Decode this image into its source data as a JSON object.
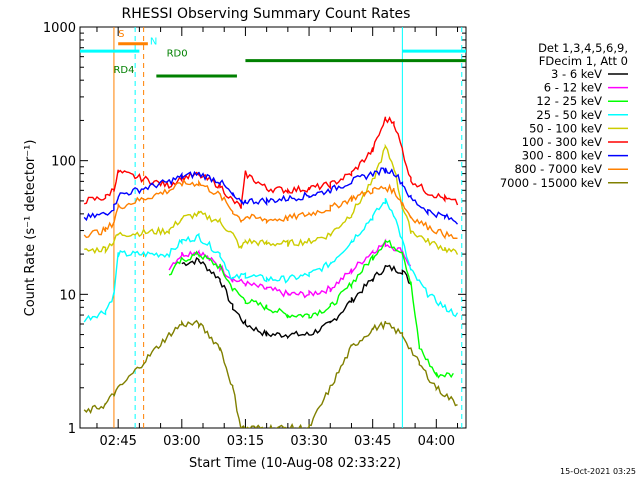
{
  "chart_data": {
    "type": "line",
    "title": "RHESSI Observing Summary Count Rates",
    "xlabel": "Start Time (10-Aug-08 02:33:22)",
    "ylabel": "Count Rate (s⁻¹ detector⁻¹)",
    "y_scale": "log",
    "ylim": [
      1,
      1000
    ],
    "xlim": [
      "02:36",
      "04:07"
    ],
    "y_ticks": [
      {
        "value": 1,
        "label": "1"
      },
      {
        "value": 10,
        "label": "10"
      },
      {
        "value": 100,
        "label": "100"
      },
      {
        "value": 1000,
        "label": "1000"
      }
    ],
    "x_ticks": [
      {
        "value": "02:45",
        "label": "02:45"
      },
      {
        "value": "03:00",
        "label": "03:00"
      },
      {
        "value": "03:15",
        "label": "03:15"
      },
      {
        "value": "03:30",
        "label": "03:30"
      },
      {
        "value": "03:45",
        "label": "03:45"
      },
      {
        "value": "04:00",
        "label": "04:00"
      }
    ],
    "legend_header": [
      "Det 1,3,4,5,6,9,",
      "FDecim 1, Att 0"
    ],
    "legend_position": "right",
    "series": [
      {
        "name": "3 - 6 keV",
        "color": "#000000",
        "points": [
          [
            "03:00",
            17
          ],
          [
            "03:04",
            18
          ],
          [
            "03:09",
            13
          ],
          [
            "03:12",
            8
          ],
          [
            "03:15",
            6
          ],
          [
            "03:20",
            5
          ],
          [
            "03:25",
            5
          ],
          [
            "03:30",
            5
          ],
          [
            "03:35",
            6
          ],
          [
            "03:40",
            9
          ],
          [
            "03:45",
            13
          ],
          [
            "03:48",
            16
          ],
          [
            "03:52",
            15
          ],
          [
            "03:54",
            12
          ]
        ]
      },
      {
        "name": "6 - 12 keV",
        "color": "#ff00ff",
        "points": [
          [
            "02:57",
            16
          ],
          [
            "03:00",
            20
          ],
          [
            "03:04",
            21
          ],
          [
            "03:09",
            16
          ],
          [
            "03:12",
            13
          ],
          [
            "03:15",
            12
          ],
          [
            "03:20",
            11
          ],
          [
            "03:25",
            10
          ],
          [
            "03:30",
            10
          ],
          [
            "03:35",
            11
          ],
          [
            "03:40",
            15
          ],
          [
            "03:45",
            21
          ],
          [
            "03:48",
            24
          ],
          [
            "03:52",
            21
          ],
          [
            "03:54",
            16
          ]
        ]
      },
      {
        "name": "12 - 25 keV",
        "color": "#00ff00",
        "points": [
          [
            "02:57",
            14
          ],
          [
            "03:00",
            18
          ],
          [
            "03:04",
            20
          ],
          [
            "03:09",
            16
          ],
          [
            "03:12",
            11
          ],
          [
            "03:15",
            9
          ],
          [
            "03:20",
            8
          ],
          [
            "03:25",
            7
          ],
          [
            "03:30",
            7
          ],
          [
            "03:35",
            8
          ],
          [
            "03:40",
            12
          ],
          [
            "03:45",
            19
          ],
          [
            "03:48",
            25
          ],
          [
            "03:52",
            21
          ],
          [
            "03:54",
            12
          ],
          [
            "03:56",
            4
          ],
          [
            "04:00",
            2.5
          ],
          [
            "04:04",
            2.5
          ]
        ]
      },
      {
        "name": "25 - 50 keV",
        "color": "#00ffff",
        "points": [
          [
            "02:37",
            6.5
          ],
          [
            "02:42",
            7.5
          ],
          [
            "02:44",
            10
          ],
          [
            "02:45",
            20
          ],
          [
            "02:57",
            20
          ],
          [
            "03:00",
            25
          ],
          [
            "03:04",
            27
          ],
          [
            "03:09",
            20
          ],
          [
            "03:12",
            13
          ],
          [
            "03:15",
            14
          ],
          [
            "03:20",
            13
          ],
          [
            "03:25",
            13
          ],
          [
            "03:30",
            14
          ],
          [
            "03:35",
            17
          ],
          [
            "03:40",
            25
          ],
          [
            "03:45",
            38
          ],
          [
            "03:48",
            50
          ],
          [
            "03:50",
            40
          ],
          [
            "03:52",
            25
          ],
          [
            "03:54",
            15
          ],
          [
            "03:58",
            10
          ],
          [
            "04:02",
            8
          ],
          [
            "04:05",
            7
          ]
        ]
      },
      {
        "name": "50 - 100 keV",
        "color": "#cccc00",
        "points": [
          [
            "02:37",
            21
          ],
          [
            "02:42",
            22
          ],
          [
            "02:44",
            25
          ],
          [
            "02:45",
            28
          ],
          [
            "02:57",
            30
          ],
          [
            "03:00",
            37
          ],
          [
            "03:04",
            40
          ],
          [
            "03:09",
            35
          ],
          [
            "03:12",
            28
          ],
          [
            "03:14",
            22
          ],
          [
            "03:15",
            25
          ],
          [
            "03:20",
            24
          ],
          [
            "03:25",
            24
          ],
          [
            "03:30",
            25
          ],
          [
            "03:35",
            28
          ],
          [
            "03:40",
            40
          ],
          [
            "03:45",
            70
          ],
          [
            "03:48",
            125
          ],
          [
            "03:50",
            90
          ],
          [
            "03:52",
            45
          ],
          [
            "03:54",
            30
          ],
          [
            "03:58",
            25
          ],
          [
            "04:02",
            22
          ],
          [
            "04:05",
            20
          ]
        ]
      },
      {
        "name": "100 - 300 keV",
        "color": "#ff0000",
        "points": [
          [
            "02:37",
            50
          ],
          [
            "02:42",
            53
          ],
          [
            "02:44",
            62
          ],
          [
            "02:45",
            82
          ],
          [
            "02:57",
            65
          ],
          [
            "03:00",
            75
          ],
          [
            "03:04",
            78
          ],
          [
            "03:09",
            65
          ],
          [
            "03:12",
            50
          ],
          [
            "03:14",
            45
          ],
          [
            "03:15",
            80
          ],
          [
            "03:20",
            62
          ],
          [
            "03:25",
            60
          ],
          [
            "03:30",
            62
          ],
          [
            "03:35",
            66
          ],
          [
            "03:40",
            80
          ],
          [
            "03:45",
            120
          ],
          [
            "03:48",
            205
          ],
          [
            "03:50",
            195
          ],
          [
            "03:52",
            120
          ],
          [
            "03:54",
            72
          ],
          [
            "03:58",
            58
          ],
          [
            "04:02",
            52
          ],
          [
            "04:05",
            48
          ]
        ]
      },
      {
        "name": "300 - 800 keV",
        "color": "#0000ff",
        "points": [
          [
            "02:37",
            37
          ],
          [
            "02:42",
            40
          ],
          [
            "02:44",
            45
          ],
          [
            "02:45",
            55
          ],
          [
            "02:57",
            70
          ],
          [
            "03:00",
            76
          ],
          [
            "03:04",
            80
          ],
          [
            "03:09",
            70
          ],
          [
            "03:12",
            55
          ],
          [
            "03:14",
            48
          ],
          [
            "03:15",
            50
          ],
          [
            "03:20",
            50
          ],
          [
            "03:25",
            52
          ],
          [
            "03:30",
            55
          ],
          [
            "03:35",
            60
          ],
          [
            "03:40",
            70
          ],
          [
            "03:45",
            80
          ],
          [
            "03:48",
            85
          ],
          [
            "03:50",
            82
          ],
          [
            "03:52",
            68
          ],
          [
            "03:54",
            52
          ],
          [
            "03:58",
            42
          ],
          [
            "04:02",
            38
          ],
          [
            "04:05",
            35
          ]
        ]
      },
      {
        "name": "800 - 7000 keV",
        "color": "#ff8000",
        "points": [
          [
            "02:37",
            28
          ],
          [
            "02:42",
            30
          ],
          [
            "02:44",
            35
          ],
          [
            "02:45",
            45
          ],
          [
            "02:57",
            60
          ],
          [
            "03:00",
            67
          ],
          [
            "03:04",
            68
          ],
          [
            "03:09",
            55
          ],
          [
            "03:12",
            42
          ],
          [
            "03:14",
            36
          ],
          [
            "03:15",
            38
          ],
          [
            "03:20",
            36
          ],
          [
            "03:25",
            37
          ],
          [
            "03:30",
            40
          ],
          [
            "03:35",
            44
          ],
          [
            "03:40",
            52
          ],
          [
            "03:45",
            60
          ],
          [
            "03:48",
            63
          ],
          [
            "03:50",
            60
          ],
          [
            "03:52",
            48
          ],
          [
            "03:54",
            38
          ],
          [
            "03:58",
            32
          ],
          [
            "04:02",
            28
          ],
          [
            "04:05",
            26
          ]
        ]
      },
      {
        "name": "7000 - 15000 keV",
        "color": "#808000",
        "points": [
          [
            "02:37",
            1.3
          ],
          [
            "02:42",
            1.5
          ],
          [
            "02:44",
            1.8
          ],
          [
            "02:57",
            5
          ],
          [
            "03:00",
            6
          ],
          [
            "03:04",
            6
          ],
          [
            "03:09",
            4
          ],
          [
            "03:12",
            2
          ],
          [
            "03:14",
            1
          ],
          [
            "03:30",
            1
          ],
          [
            "03:35",
            2
          ],
          [
            "03:40",
            4
          ],
          [
            "03:45",
            5.5
          ],
          [
            "03:48",
            6
          ],
          [
            "03:52",
            5
          ],
          [
            "03:56",
            3
          ],
          [
            "04:00",
            2
          ],
          [
            "04:05",
            1.5
          ]
        ]
      }
    ],
    "annotations": [
      {
        "label": "S",
        "color": "#ff8000",
        "x_start": "02:45",
        "x_end": "02:52"
      },
      {
        "label": "N",
        "color": "#00ffff",
        "x_start": "02:52",
        "x_end": "02:53"
      },
      {
        "label": "RD4",
        "color": "#008000",
        "x_start": "02:36",
        "x_end": "02:54"
      },
      {
        "label": "RD0",
        "color": "#008000",
        "x_start": "02:55",
        "x_end": "03:13"
      }
    ],
    "bars": [
      {
        "name": "RD top bar 1",
        "color": "#008000",
        "x_start": "02:54",
        "x_end": "03:13",
        "y": 430
      },
      {
        "name": "RD top bar 2",
        "color": "#008000",
        "x_start": "03:15",
        "x_end": "04:07",
        "y": 560
      },
      {
        "name": "S bar",
        "color": "#ff8000",
        "x_start": "02:45",
        "x_end": "02:52",
        "y": 750
      },
      {
        "name": "N bar 1",
        "color": "#00ffff",
        "x_start": "02:36",
        "x_end": "02:50",
        "y": 660
      },
      {
        "name": "N bar 2",
        "color": "#00ffff",
        "x_start": "03:52",
        "x_end": "04:07",
        "y": 660
      }
    ],
    "vlines": [
      {
        "x": "02:44",
        "color": "#ff8000",
        "style": "solid"
      },
      {
        "x": "02:49",
        "color": "#00ffff",
        "style": "dashed"
      },
      {
        "x": "02:51",
        "color": "#ff8000",
        "style": "dashed"
      },
      {
        "x": "03:52",
        "color": "#00ffff",
        "style": "solid"
      },
      {
        "x": "04:06",
        "color": "#00ffff",
        "style": "dashed"
      }
    ]
  },
  "footer": {
    "timestamp": "15-Oct-2021 03:25"
  }
}
